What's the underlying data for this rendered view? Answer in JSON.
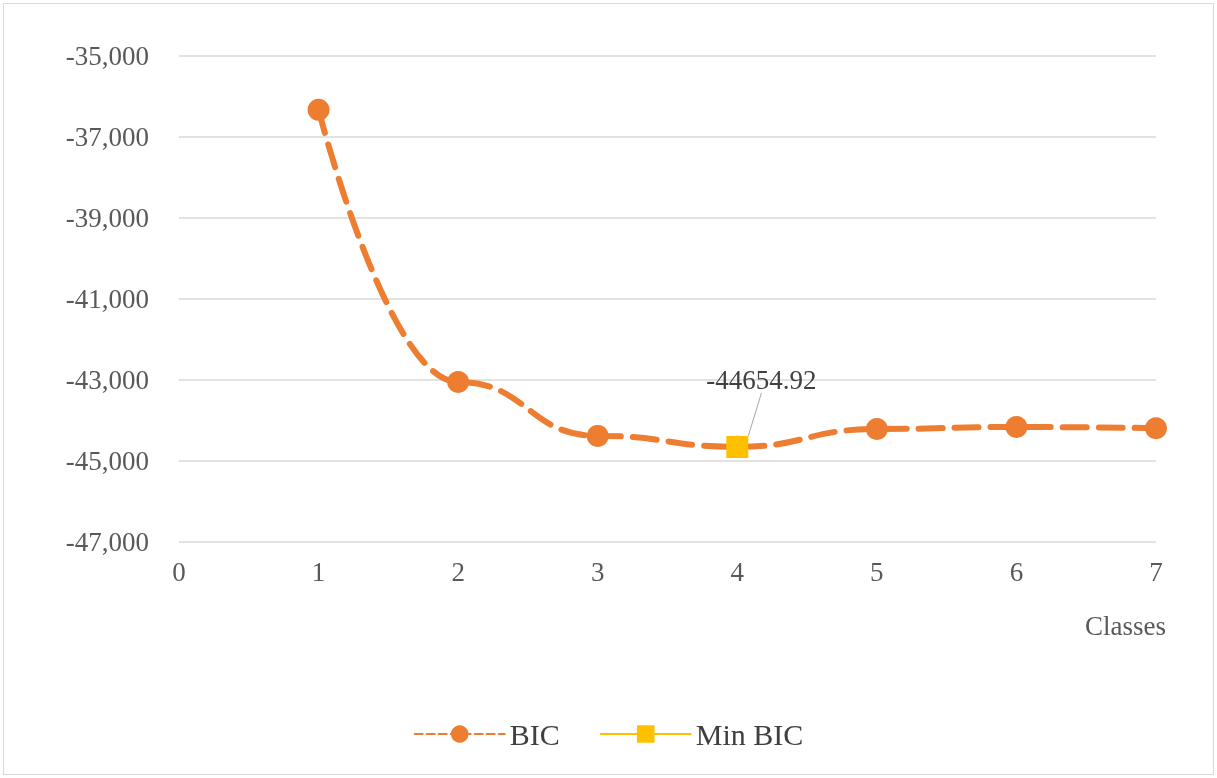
{
  "chart_data": {
    "type": "line",
    "xlabel": "Classes",
    "xlim": [
      0,
      7
    ],
    "xticks": [
      0,
      1,
      2,
      3,
      4,
      5,
      6,
      7
    ],
    "ylim": [
      -47000,
      -35000
    ],
    "yticks": [
      {
        "value": -47000,
        "label": "-47,000"
      },
      {
        "value": -45000,
        "label": "-45,000"
      },
      {
        "value": -43000,
        "label": "-43,000"
      },
      {
        "value": -41000,
        "label": "-41,000"
      },
      {
        "value": -39000,
        "label": "-39,000"
      },
      {
        "value": -37000,
        "label": "-37,000"
      },
      {
        "value": -35000,
        "label": "-35,000"
      }
    ],
    "grid": "y",
    "legend": "bottom",
    "series": [
      {
        "name": "BIC",
        "color": "#ed7d31",
        "x": [
          1,
          2,
          3,
          4,
          5,
          6,
          7
        ],
        "values": [
          -36330,
          -43050,
          -44380,
          -44650,
          -44210,
          -44160,
          -44190
        ],
        "marker": "circle",
        "line_style": "dashed"
      },
      {
        "name": "Min BIC",
        "color": "#ffc000",
        "x": [
          4
        ],
        "values": [
          -44654.92
        ],
        "marker": "square",
        "line_style": "solid",
        "value_labels": [
          "-44654.92"
        ]
      }
    ]
  }
}
